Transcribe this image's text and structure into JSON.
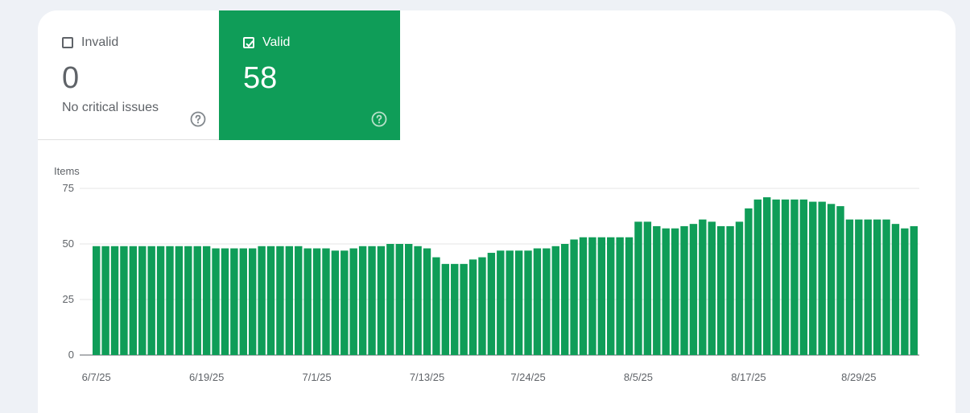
{
  "summary": {
    "invalid": {
      "label": "Invalid",
      "value": "0",
      "subtitle": "No critical issues",
      "checked": false,
      "help_icon": "help-circle-icon"
    },
    "valid": {
      "label": "Valid",
      "value": "58",
      "checked": true,
      "help_icon": "help-circle-icon",
      "color": "#0f9d58"
    }
  },
  "chart_data": {
    "type": "bar",
    "ylabel": "Items",
    "ylim": [
      0,
      75
    ],
    "yticks": [
      0,
      25,
      50,
      75
    ],
    "xtick_labels": [
      "6/7/25",
      "6/19/25",
      "7/1/25",
      "7/13/25",
      "7/24/25",
      "8/5/25",
      "8/17/25",
      "8/29/25"
    ],
    "xtick_indices": [
      0,
      12,
      24,
      36,
      47,
      59,
      71,
      83
    ],
    "grid": true,
    "bar_color": "#0f9d58",
    "series": [
      {
        "values": [
          49,
          49,
          49,
          49,
          49,
          49,
          49,
          49,
          49,
          49,
          49,
          49,
          49,
          48,
          48,
          48,
          48,
          48,
          49,
          49,
          49,
          49,
          49,
          48,
          48,
          48,
          47,
          47,
          48,
          49,
          49,
          49,
          50,
          50,
          50,
          49,
          48,
          44,
          41,
          41,
          41,
          43,
          44,
          46,
          47,
          47,
          47,
          47,
          48,
          48,
          49,
          50,
          52,
          53,
          53,
          53,
          53,
          53,
          53,
          60,
          60,
          58,
          57,
          57,
          58,
          59,
          61,
          60,
          58,
          58,
          60,
          66,
          70,
          71,
          70,
          70,
          70,
          70,
          69,
          69,
          68,
          67,
          61,
          61,
          61,
          61,
          61,
          59,
          57,
          58
        ]
      }
    ]
  }
}
